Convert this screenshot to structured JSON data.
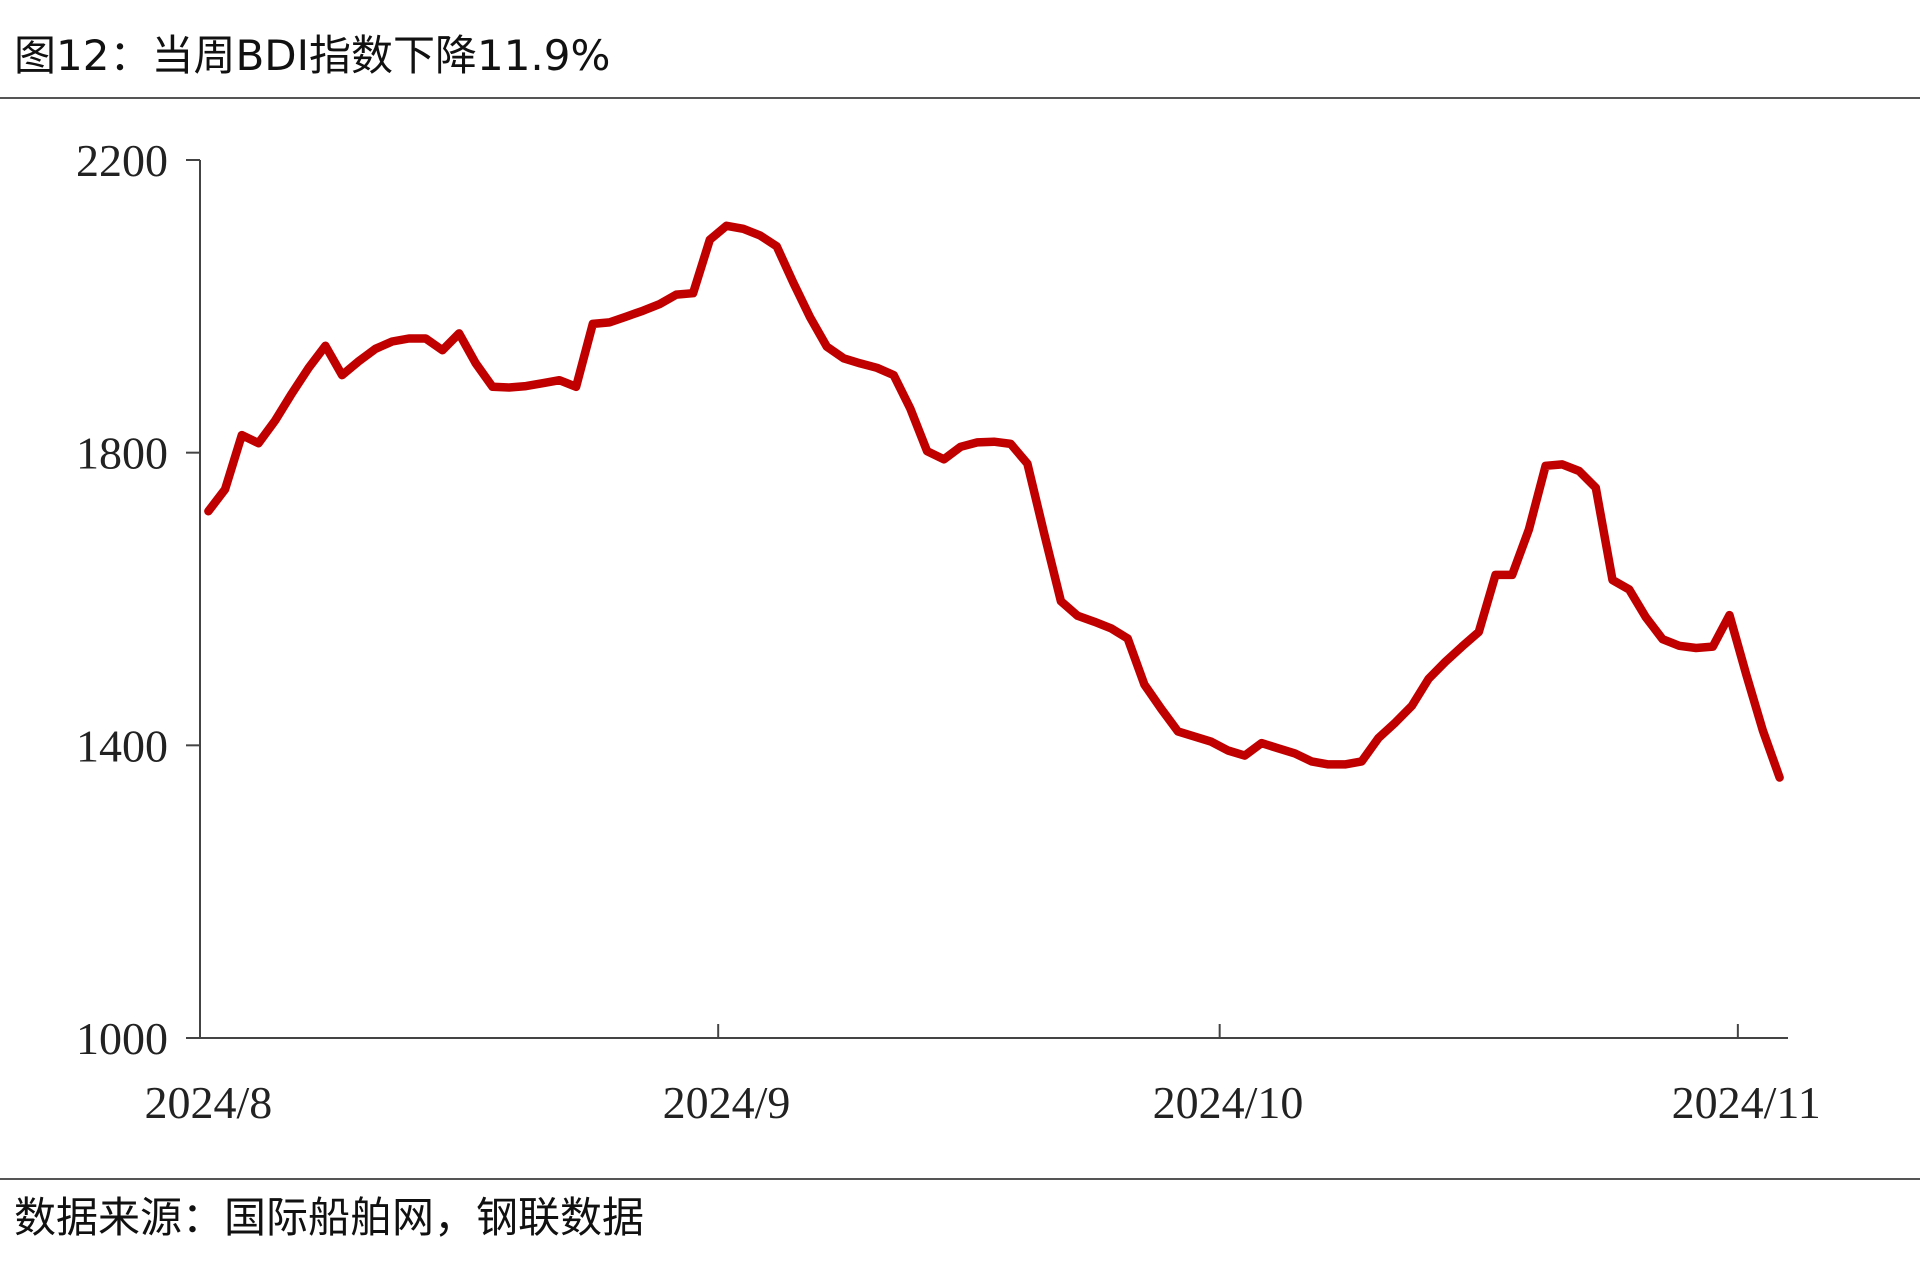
{
  "title": "图12：当周BDI指数下降11.9%",
  "source": "数据来源：国际船舶网，钢联数据",
  "chart_data": {
    "type": "line",
    "categories": [
      "2024/8",
      null,
      null,
      null,
      null,
      null,
      null,
      null,
      null,
      null,
      null,
      null,
      null,
      null,
      null,
      null,
      null,
      null,
      null,
      null,
      null,
      null,
      null,
      null,
      null,
      null,
      null,
      null,
      null,
      null,
      null,
      "2024/9",
      null,
      null,
      null,
      null,
      null,
      null,
      null,
      null,
      null,
      null,
      null,
      null,
      null,
      null,
      null,
      null,
      null,
      null,
      null,
      null,
      null,
      null,
      null,
      null,
      null,
      null,
      null,
      null,
      null,
      "2024/10",
      null,
      null,
      null,
      null,
      null,
      null,
      null,
      null,
      null,
      null,
      null,
      null,
      null,
      null,
      null,
      null,
      null,
      null,
      null,
      null,
      null,
      null,
      null,
      null,
      null,
      null,
      null,
      null,
      null,
      null,
      "2024/11",
      null,
      null
    ],
    "series": [
      {
        "name": "BDI",
        "color": "#c00000",
        "values": [
          1720,
          1750,
          1824,
          1813,
          1844,
          1881,
          1916,
          1946,
          1906,
          1925,
          1942,
          1952,
          1956,
          1956,
          1940,
          1963,
          1922,
          1890,
          1889,
          1891,
          1895,
          1899,
          1890,
          1976,
          1978,
          1986,
          1994,
          2003,
          2016,
          2018,
          2091,
          2110,
          2106,
          2097,
          2082,
          2032,
          1985,
          1945,
          1929,
          1922,
          1916,
          1906,
          1860,
          1802,
          1791,
          1808,
          1814,
          1815,
          1812,
          1785,
          1690,
          1597,
          1577,
          1569,
          1560,
          1546,
          1483,
          1450,
          1419,
          1412,
          1405,
          1393,
          1386,
          1403,
          1396,
          1389,
          1378,
          1374,
          1374,
          1378,
          1410,
          1431,
          1454,
          1491,
          1514,
          1535,
          1555,
          1633,
          1633,
          1695,
          1782,
          1784,
          1775,
          1752,
          1626,
          1613,
          1575,
          1545,
          1536,
          1533,
          1535,
          1578,
          1497,
          1420,
          1356
        ]
      }
    ],
    "ylim": [
      1000,
      2200
    ],
    "yticks": [
      1000,
      1400,
      1800,
      2200
    ],
    "grid": false
  }
}
